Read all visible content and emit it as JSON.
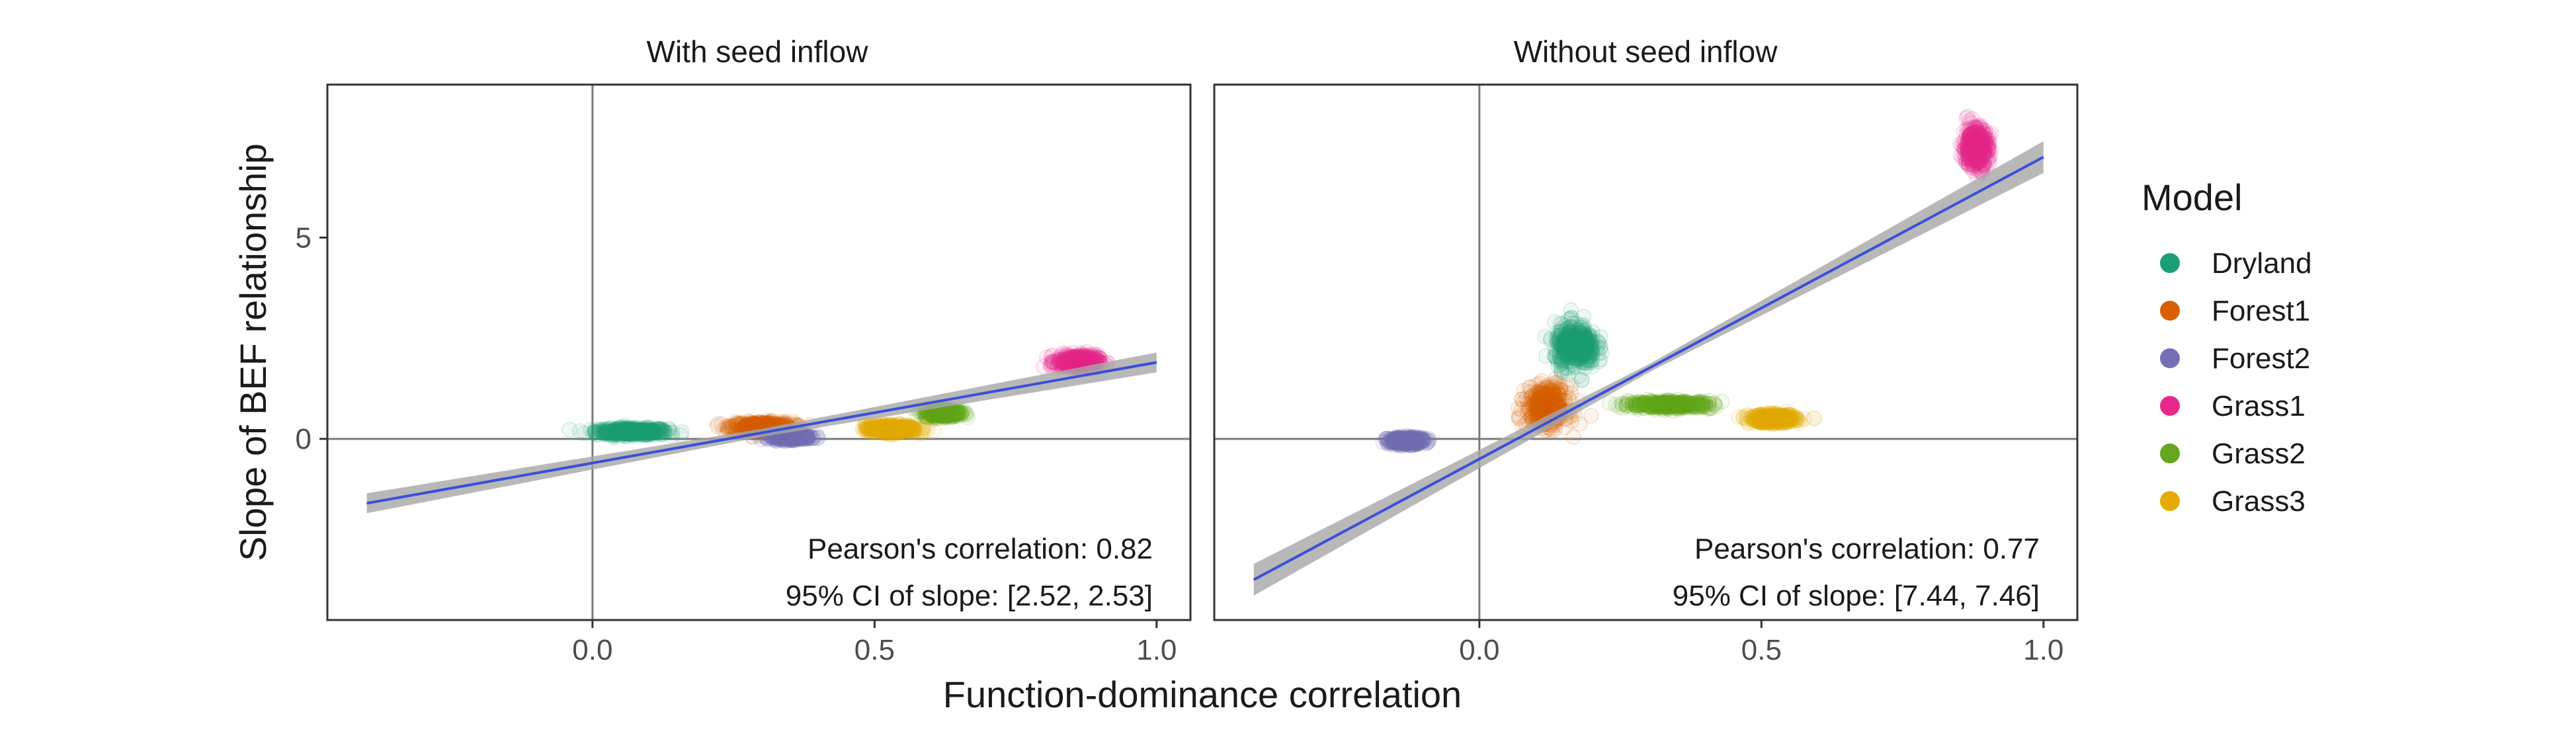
{
  "chart_data": {
    "type": "scatter",
    "xlabel": "Function-dominance correlation",
    "ylabel": "Slope of BEF relationship",
    "xlim": [
      -0.47,
      1.06
    ],
    "ylim": [
      -4.5,
      8.8
    ],
    "x_ticks": [
      0.0,
      0.5,
      1.0
    ],
    "x_tick_labels": [
      "0.0",
      "0.5",
      "1.0"
    ],
    "y_ticks": [
      0,
      5
    ],
    "y_tick_labels": [
      "0",
      "5"
    ],
    "reference_lines": {
      "x": 0,
      "y": 0
    },
    "grid": false,
    "legend": {
      "title": "Model",
      "position": "right",
      "entries": [
        {
          "name": "Dryland",
          "color": "#1b9e77"
        },
        {
          "name": "Forest1",
          "color": "#d95f02"
        },
        {
          "name": "Forest2",
          "color": "#7570b3"
        },
        {
          "name": "Grass1",
          "color": "#e7298a"
        },
        {
          "name": "Grass2",
          "color": "#66a61e"
        },
        {
          "name": "Grass3",
          "color": "#e6ab02"
        }
      ]
    },
    "panels": [
      {
        "title": "With seed inflow",
        "fit_line": {
          "x": [
            -0.4,
            1.0
          ],
          "y": [
            -1.6,
            1.9
          ],
          "color": "#3a4fd8",
          "band_color": "#a6a6a6"
        },
        "annotations": [
          "Pearson's correlation: 0.82",
          "95% CI of slope: [2.52, 2.53]"
        ],
        "clusters": [
          {
            "series": "Dryland",
            "x_center": 0.07,
            "y_center": 0.18,
            "x_spread": 0.07,
            "y_spread": 0.1
          },
          {
            "series": "Forest1",
            "x_center": 0.3,
            "y_center": 0.3,
            "x_spread": 0.06,
            "y_spread": 0.14
          },
          {
            "series": "Forest2",
            "x_center": 0.35,
            "y_center": 0.05,
            "x_spread": 0.04,
            "y_spread": 0.08
          },
          {
            "series": "Grass1",
            "x_center": 0.86,
            "y_center": 1.92,
            "x_spread": 0.04,
            "y_spread": 0.18
          },
          {
            "series": "Grass2",
            "x_center": 0.62,
            "y_center": 0.65,
            "x_spread": 0.035,
            "y_spread": 0.12
          },
          {
            "series": "Grass3",
            "x_center": 0.53,
            "y_center": 0.25,
            "x_spread": 0.05,
            "y_spread": 0.11
          }
        ]
      },
      {
        "title": "Without seed inflow",
        "fit_line": {
          "x": [
            -0.4,
            1.0
          ],
          "y": [
            -3.5,
            7.0
          ],
          "color": "#3a4fd8",
          "band_color": "#a6a6a6"
        },
        "annotations": [
          "Pearson's correlation: 0.77",
          "95% CI of slope: [7.44, 7.46]"
        ],
        "clusters": [
          {
            "series": "Dryland",
            "x_center": 0.17,
            "y_center": 2.3,
            "x_spread": 0.04,
            "y_spread": 0.6
          },
          {
            "series": "Forest1",
            "x_center": 0.12,
            "y_center": 0.8,
            "x_spread": 0.04,
            "y_spread": 0.55
          },
          {
            "series": "Forest2",
            "x_center": -0.13,
            "y_center": -0.05,
            "x_spread": 0.035,
            "y_spread": 0.1
          },
          {
            "series": "Grass1",
            "x_center": 0.88,
            "y_center": 7.25,
            "x_spread": 0.025,
            "y_spread": 0.55
          },
          {
            "series": "Grass2",
            "x_center": 0.34,
            "y_center": 0.85,
            "x_spread": 0.08,
            "y_spread": 0.1
          },
          {
            "series": "Grass3",
            "x_center": 0.52,
            "y_center": 0.5,
            "x_spread": 0.045,
            "y_spread": 0.12
          }
        ]
      }
    ]
  }
}
